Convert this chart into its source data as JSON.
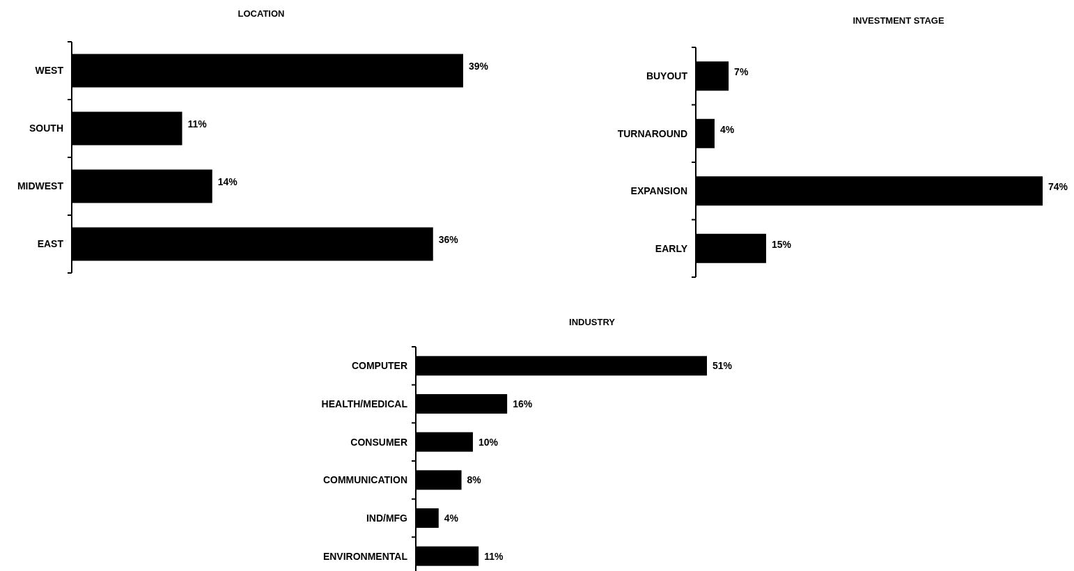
{
  "chart_data": [
    {
      "type": "bar",
      "orientation": "horizontal",
      "title": "LOCATION",
      "categories": [
        "WEST",
        "SOUTH",
        "MIDWEST",
        "EAST"
      ],
      "values": [
        39,
        11,
        14,
        36
      ],
      "value_labels": [
        "39%",
        "11%",
        "14%",
        "36%"
      ],
      "color": "#000000"
    },
    {
      "type": "bar",
      "orientation": "horizontal",
      "title": "INVESTMENT STAGE",
      "categories": [
        "BUYOUT",
        "TURNAROUND",
        "EXPANSION",
        "EARLY"
      ],
      "values": [
        7,
        4,
        74,
        15
      ],
      "value_labels": [
        "7%",
        "4%",
        "74%",
        "15%"
      ],
      "color": "#000000"
    },
    {
      "type": "bar",
      "orientation": "horizontal",
      "title": "INDUSTRY",
      "categories": [
        "COMPUTER",
        "HEALTH/MEDICAL",
        "CONSUMER",
        "COMMUNICATION",
        "IND/MFG",
        "ENVIRONMENTAL"
      ],
      "values": [
        51,
        16,
        10,
        8,
        4,
        11
      ],
      "value_labels": [
        "51%",
        "16%",
        "10%",
        "8%",
        "4%",
        "11%"
      ],
      "color": "#000000"
    }
  ]
}
